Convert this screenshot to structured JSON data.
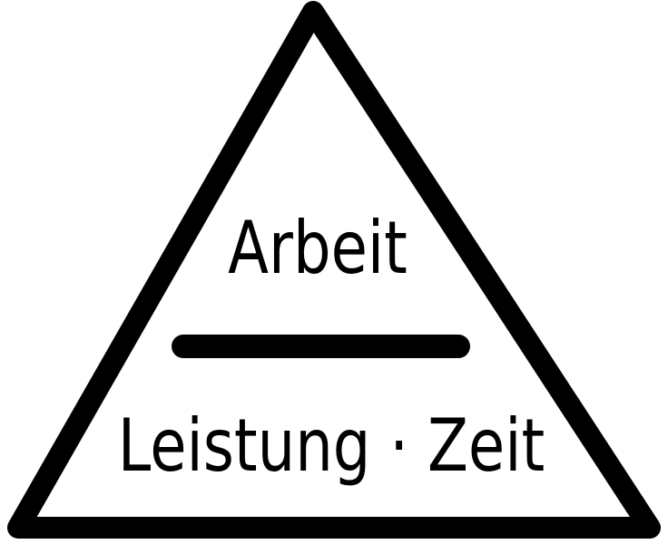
{
  "diagram": {
    "top_label": "Arbeit",
    "bottom_label": "Leistung · Zeit",
    "stroke_color": "#000000",
    "background_color": "#ffffff"
  }
}
